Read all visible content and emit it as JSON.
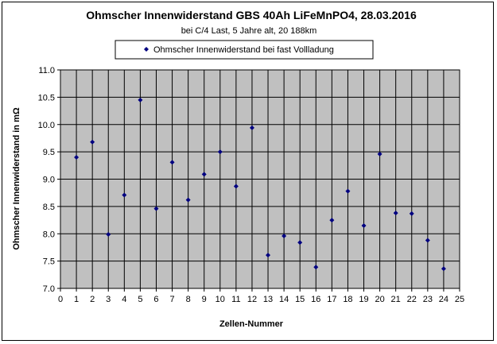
{
  "chart_data": {
    "type": "scatter",
    "title": "Ohmscher Innenwiderstand GBS 40Ah LiFeMnPO4, 28.03.2016",
    "subtitle": "bei C/4 Last, 5 Jahre alt, 20 188km",
    "xlabel": "Zellen-Nummer",
    "ylabel": "Ohmscher Innenwiderstand in mΩ",
    "xlim": [
      0,
      25
    ],
    "ylim": [
      7.0,
      11.0
    ],
    "x_ticks": [
      0,
      1,
      2,
      3,
      4,
      5,
      6,
      7,
      8,
      9,
      10,
      11,
      12,
      13,
      14,
      15,
      16,
      17,
      18,
      19,
      20,
      21,
      22,
      23,
      24,
      25
    ],
    "y_ticks": [
      "11.0",
      "10.5",
      "10.0",
      "9.5",
      "9.0",
      "8.5",
      "8.0",
      "7.5",
      "7.0"
    ],
    "grid": true,
    "legend_position": "top",
    "series": [
      {
        "name": "Ohmscher Innenwiderstand bei fast Vollladung",
        "color": "#000080",
        "marker": "diamond",
        "x": [
          1,
          2,
          3,
          4,
          5,
          6,
          7,
          8,
          9,
          10,
          11,
          12,
          13,
          14,
          15,
          16,
          17,
          18,
          19,
          20,
          21,
          22,
          23,
          24
        ],
        "y": [
          9.4,
          9.68,
          7.99,
          8.71,
          10.45,
          8.46,
          9.31,
          8.62,
          9.09,
          9.5,
          8.87,
          9.94,
          7.61,
          7.96,
          7.84,
          7.39,
          8.25,
          8.78,
          8.15,
          9.46,
          8.38,
          8.37,
          7.88,
          7.36
        ]
      }
    ],
    "colors": {
      "plot_background": "#c0c0c0",
      "grid": "#000000",
      "marker": "#000080"
    }
  }
}
